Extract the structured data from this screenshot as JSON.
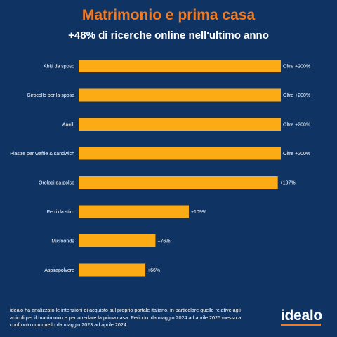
{
  "header": {
    "title": "Matrimonio e prima casa",
    "subtitle": "+48% di ricerche online nell'ultimo anno"
  },
  "chart_data": {
    "type": "bar",
    "orientation": "horizontal",
    "categories": [
      "Abiti da sposo",
      "Girocollo per la sposa",
      "Anelli",
      "Piastre per waffle & sandwich",
      "Orologi da polso",
      "Ferri da stiro",
      "Microonde",
      "Aspirapolvere"
    ],
    "values": [
      200,
      200,
      200,
      200,
      197,
      109,
      76,
      66
    ],
    "data_labels": [
      "Oltre +200%",
      "Oltre +200%",
      "Oltre +200%",
      "Oltre +200%",
      "+197%",
      "+109%",
      "+76%",
      "+66%"
    ],
    "xlim": [
      0,
      200
    ],
    "grid": false,
    "bar_color": "#fcab14"
  },
  "footer": {
    "note": "idealo ha analizzato le intenzioni di acquisto sul proprio portale italiano, in particolare quelle relative agli articoli per il matrimonio e per arredare la prima casa. Periodo: da maggio 2024 ad aprile 2025 messo a confronto con quello da maggio 2023 ad aprile 2024.",
    "logo": "idealo"
  },
  "colors": {
    "background": "#0f3463",
    "title": "#f47a20",
    "bar": "#fcab14",
    "text": "#ffffff"
  }
}
